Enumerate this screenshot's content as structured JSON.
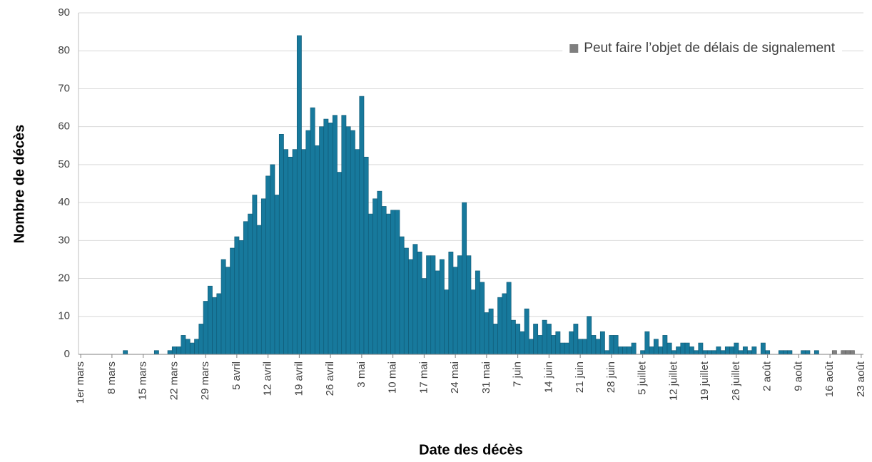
{
  "chart_data": {
    "type": "bar",
    "xlabel": "Date des décès",
    "ylabel": "Nombre de décès",
    "categories": [
      "1er mars",
      null,
      null,
      null,
      null,
      null,
      null,
      "8 mars",
      null,
      null,
      null,
      null,
      null,
      null,
      "15 mars",
      null,
      null,
      null,
      null,
      null,
      null,
      "22 mars",
      null,
      null,
      null,
      null,
      null,
      null,
      "29 mars",
      null,
      null,
      null,
      null,
      null,
      null,
      "5 avril",
      null,
      null,
      null,
      null,
      null,
      null,
      "12 avril",
      null,
      null,
      null,
      null,
      null,
      null,
      "19 avril",
      null,
      null,
      null,
      null,
      null,
      null,
      "26 avril",
      null,
      null,
      null,
      null,
      null,
      null,
      "3 mai",
      null,
      null,
      null,
      null,
      null,
      null,
      "10 mai",
      null,
      null,
      null,
      null,
      null,
      null,
      "17 mai",
      null,
      null,
      null,
      null,
      null,
      null,
      "24 mai",
      null,
      null,
      null,
      null,
      null,
      null,
      "31 mai",
      null,
      null,
      null,
      null,
      null,
      null,
      "7 juin",
      null,
      null,
      null,
      null,
      null,
      null,
      "14 juin",
      null,
      null,
      null,
      null,
      null,
      null,
      "21 juin",
      null,
      null,
      null,
      null,
      null,
      null,
      "28 juin",
      null,
      null,
      null,
      null,
      null,
      null,
      "5 juillet",
      null,
      null,
      null,
      null,
      null,
      null,
      "12 juillet",
      null,
      null,
      null,
      null,
      null,
      null,
      "19 juillet",
      null,
      null,
      null,
      null,
      null,
      null,
      "26 juillet",
      null,
      null,
      null,
      null,
      null,
      null,
      "2 août",
      null,
      null,
      null,
      null,
      null,
      null,
      "9 août",
      null,
      null,
      null,
      null,
      null,
      null,
      "16 août",
      null,
      null,
      null,
      null,
      null,
      null,
      "23 août"
    ],
    "series": [
      {
        "color": "#17799c",
        "values": [
          0,
          0,
          0,
          0,
          0,
          0,
          0,
          0,
          0,
          0,
          1,
          0,
          0,
          0,
          0,
          0,
          0,
          1,
          0,
          0,
          1,
          2,
          2,
          5,
          4,
          3,
          4,
          8,
          14,
          18,
          15,
          16,
          25,
          23,
          28,
          31,
          30,
          35,
          37,
          42,
          34,
          41,
          47,
          50,
          42,
          58,
          54,
          52,
          54,
          84,
          54,
          59,
          65,
          55,
          60,
          62,
          61,
          63,
          48,
          63,
          60,
          59,
          54,
          68,
          52,
          37,
          41,
          43,
          39,
          37,
          38,
          38,
          31,
          28,
          25,
          29,
          27,
          20,
          26,
          26,
          22,
          25,
          17,
          27,
          23,
          26,
          40,
          26,
          17,
          22,
          19,
          11,
          12,
          8,
          15,
          16,
          19,
          9,
          8,
          6,
          12,
          4,
          8,
          5,
          9,
          8,
          5,
          6,
          3,
          3,
          6,
          8,
          4,
          4,
          10,
          5,
          4,
          6,
          1,
          5,
          5,
          2,
          2,
          2,
          3,
          0,
          1,
          6,
          2,
          4,
          2,
          5,
          3,
          1,
          2,
          3,
          3,
          2,
          1,
          3,
          1,
          1,
          1,
          2,
          1,
          2,
          2,
          3,
          1,
          2,
          1,
          2,
          0,
          3,
          1,
          0,
          0,
          1,
          1,
          1,
          0,
          0,
          1,
          1,
          0,
          1,
          0,
          0,
          0,
          null,
          null,
          null,
          null,
          null,
          null,
          null
        ]
      },
      {
        "name": "Peut faire l’objet de délais de signalement",
        "color": "#7f7f7f",
        "values": [
          null,
          null,
          null,
          null,
          null,
          null,
          null,
          null,
          null,
          null,
          null,
          null,
          null,
          null,
          null,
          null,
          null,
          null,
          null,
          null,
          null,
          null,
          null,
          null,
          null,
          null,
          null,
          null,
          null,
          null,
          null,
          null,
          null,
          null,
          null,
          null,
          null,
          null,
          null,
          null,
          null,
          null,
          null,
          null,
          null,
          null,
          null,
          null,
          null,
          null,
          null,
          null,
          null,
          null,
          null,
          null,
          null,
          null,
          null,
          null,
          null,
          null,
          null,
          null,
          null,
          null,
          null,
          null,
          null,
          null,
          null,
          null,
          null,
          null,
          null,
          null,
          null,
          null,
          null,
          null,
          null,
          null,
          null,
          null,
          null,
          null,
          null,
          null,
          null,
          null,
          null,
          null,
          null,
          null,
          null,
          null,
          null,
          null,
          null,
          null,
          null,
          null,
          null,
          null,
          null,
          null,
          null,
          null,
          null,
          null,
          null,
          null,
          null,
          null,
          null,
          null,
          null,
          null,
          null,
          null,
          null,
          null,
          null,
          null,
          null,
          null,
          null,
          null,
          null,
          null,
          null,
          null,
          null,
          null,
          null,
          null,
          null,
          null,
          null,
          null,
          null,
          null,
          null,
          null,
          null,
          null,
          null,
          null,
          null,
          null,
          null,
          null,
          null,
          null,
          null,
          null,
          null,
          null,
          null,
          null,
          null,
          null,
          null,
          null,
          null,
          null,
          null,
          null,
          null,
          1,
          0,
          1,
          1,
          1,
          0,
          0
        ]
      }
    ],
    "ylim": [
      0,
      90
    ],
    "yticks": [
      0,
      10,
      20,
      30,
      40,
      50,
      60,
      70,
      80,
      90
    ],
    "grid": true,
    "legend": "upper right"
  }
}
